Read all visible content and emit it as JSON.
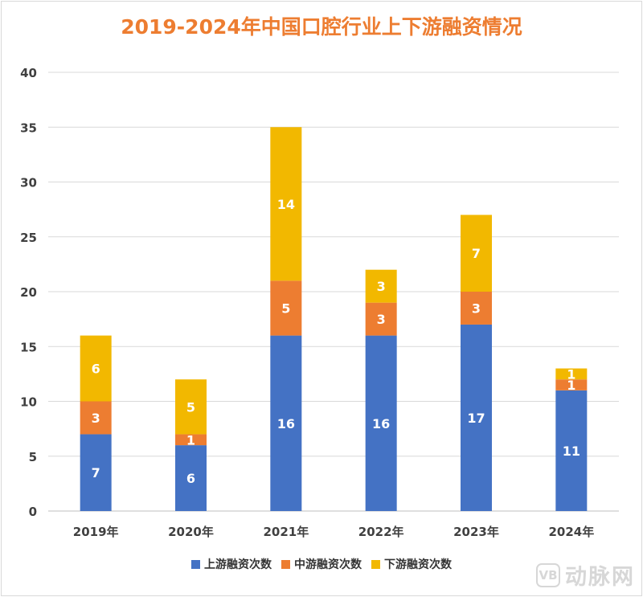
{
  "chart_data": {
    "type": "bar",
    "stacked": true,
    "title": "2019-2024年中国口腔行业上下游融资情况",
    "categories": [
      "2019年",
      "2020年",
      "2021年",
      "2022年",
      "2023年",
      "2024年"
    ],
    "series": [
      {
        "name": "上游融资次数",
        "values": [
          7,
          6,
          16,
          16,
          17,
          11
        ],
        "color": "#4472c4"
      },
      {
        "name": "中游融资次数",
        "values": [
          3,
          1,
          5,
          3,
          3,
          1
        ],
        "color": "#ed7d31"
      },
      {
        "name": "下游融资次数",
        "values": [
          6,
          5,
          14,
          3,
          7,
          1
        ],
        "color": "#f2b800"
      }
    ],
    "ylim": [
      0,
      40
    ],
    "yticks": [
      0,
      5,
      10,
      15,
      20,
      25,
      30,
      35,
      40
    ],
    "grid": true,
    "legend_position": "bottom"
  },
  "watermark": {
    "logo": "VB",
    "text": "动脉网"
  }
}
